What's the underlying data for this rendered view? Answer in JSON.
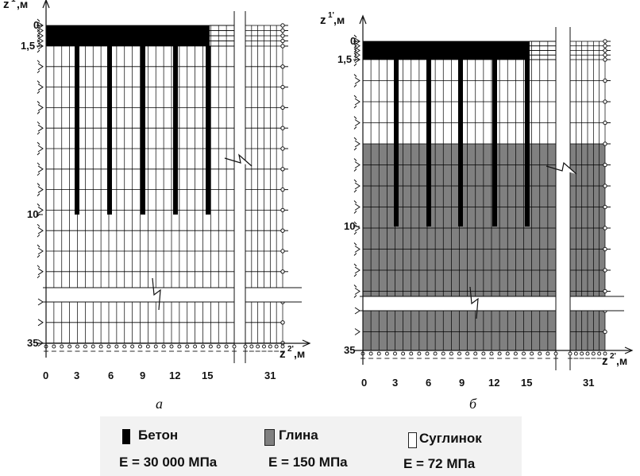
{
  "panels": [
    {
      "id": "a",
      "caption": "а",
      "z_axis_label": "z",
      "z_axis_sup": "1'",
      "z_axis_unit": ",м",
      "x_axis_label": "z",
      "x_axis_sup": "2'",
      "x_axis_unit": ",м",
      "z_ticks": [
        "0",
        "1,5",
        "10",
        "35"
      ],
      "x_ticks": [
        "0",
        "3",
        "6",
        "9",
        "12",
        "15",
        "31"
      ],
      "background_material": "Суглинок",
      "lower_layer_material": "Суглинок"
    },
    {
      "id": "b",
      "caption": "б",
      "z_axis_label": "z",
      "z_axis_sup": "1'",
      "z_axis_unit": ",м",
      "x_axis_label": "z",
      "x_axis_sup": "2'",
      "x_axis_unit": ",м",
      "z_ticks": [
        "0",
        "1,5",
        "10",
        "35"
      ],
      "x_ticks": [
        "0",
        "3",
        "6",
        "9",
        "12",
        "15",
        "31"
      ],
      "background_material": "Суглинок",
      "lower_layer_material": "Глина"
    }
  ],
  "legend": {
    "items": [
      {
        "name": "Бетон",
        "modulus": "E = 30 000 МПа",
        "color": "#000000"
      },
      {
        "name": "Глина",
        "modulus": "E = 150 МПа",
        "color": "#808080"
      },
      {
        "name": "Суглинок",
        "modulus": "E = 72 МПа",
        "color": "#ffffff"
      }
    ]
  },
  "colors": {
    "concrete": "#000000",
    "clay": "#808080",
    "loam": "#ffffff",
    "grid": "#000000",
    "legend_bg": "#f2f2f2"
  }
}
